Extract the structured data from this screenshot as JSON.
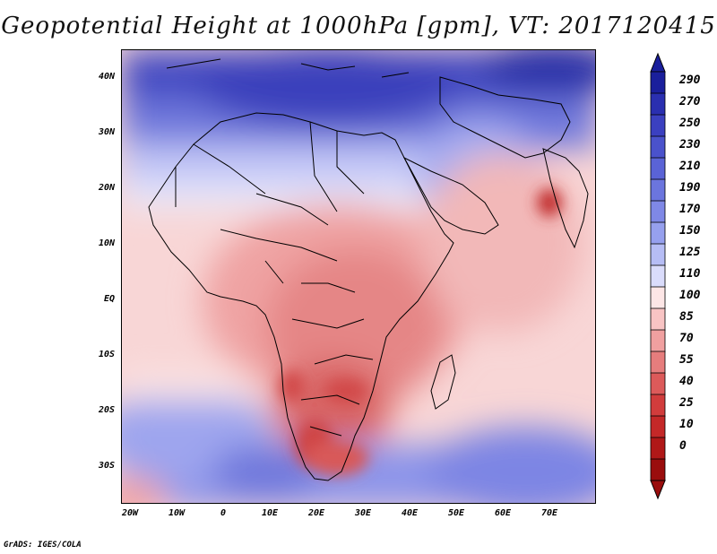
{
  "title": "Geopotential Height at 1000hPa [gpm], VT: 2017120415",
  "credit": "GrADS: IGES/COLA",
  "map": {
    "lat_labels": [
      "40N",
      "30N",
      "20N",
      "10N",
      "EQ",
      "10S",
      "20S",
      "30S"
    ],
    "lon_labels": [
      "20W",
      "10W",
      "0",
      "10E",
      "20E",
      "30E",
      "40E",
      "50E",
      "60E",
      "70E"
    ]
  },
  "colorbar": {
    "levels": [
      "290",
      "270",
      "250",
      "230",
      "210",
      "190",
      "170",
      "150",
      "125",
      "110",
      "100",
      "85",
      "70",
      "55",
      "40",
      "25",
      "10",
      "0"
    ],
    "colors": [
      "#1a1f9c",
      "#2a2fb0",
      "#3b40c0",
      "#4a52cc",
      "#5a63d6",
      "#6b75de",
      "#7f88e6",
      "#96a0ee",
      "#b6bdf5",
      "#dadcfb",
      "#fde6e6",
      "#f8c4c4",
      "#f0a0a0",
      "#e67d7d",
      "#dc5a5a",
      "#d13c3c",
      "#c42828",
      "#b01818",
      "#9a0d0d"
    ]
  }
}
